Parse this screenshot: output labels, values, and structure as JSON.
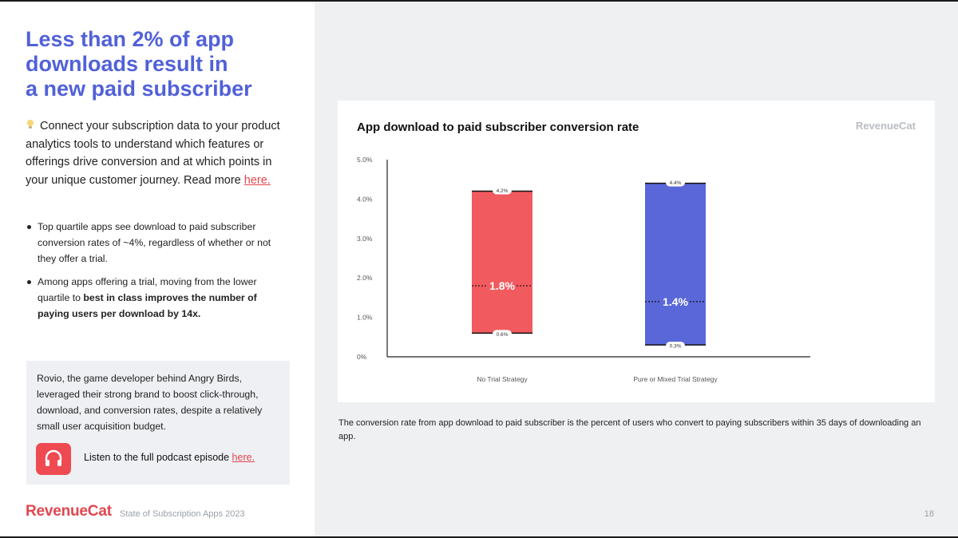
{
  "left": {
    "headline": [
      "Less than 2% of app",
      "downloads result in",
      "a new paid subscriber"
    ],
    "intro_text": "Connect your subscription data to your product analytics tools to understand which features or offerings drive conversion and at which points in your unique customer journey. Read more ",
    "intro_link": "here.",
    "bullet1": "Top quartile apps see download to paid subscriber conversion rates of ~4%, regardless of whether or not they offer a trial.",
    "bullet2_pre": "Among apps offering a trial, moving from the lower quartile to ",
    "bullet2_bold": "best in class improves the number of paying users per download by 14x.",
    "callout_text": "Rovio, the game developer behind Angry Birds, leveraged their strong brand to boost click-through, download, and conversion rates, despite a relatively small user acquisition budget.",
    "podcast_text": "Listen to the full podcast episode ",
    "podcast_link": "here."
  },
  "footer": {
    "logo": "RevenueCat",
    "subtitle": "State of Subscription Apps 2023",
    "page": "18"
  },
  "chart_card": {
    "brand": "RevenueCat"
  },
  "caption": "The conversion rate from app download to paid subscriber is the percent of users who convert to paying subscribers within 35 days of downloading an app.",
  "colors": {
    "accent": "#5161d8",
    "brand_red": "#e2464f",
    "bar_red": "#f15a5e",
    "bar_blue": "#5a67d8"
  },
  "chart_data": {
    "type": "bar",
    "title": "App download to paid subscriber conversion rate",
    "xlabel": "",
    "ylabel": "",
    "ylim": [
      0,
      5
    ],
    "yticks": [
      0,
      1,
      2,
      3,
      4,
      5
    ],
    "ytick_labels": [
      "0%",
      "1.0%",
      "2.0%",
      "3.0%",
      "4.0%",
      "5.0%"
    ],
    "categories": [
      "No Trial Strategy",
      "Pure or Mixed Trial Strategy"
    ],
    "bars": [
      {
        "category": "No Trial Strategy",
        "low": 0.6,
        "high": 4.2,
        "median": 1.8,
        "low_label": "0.6%",
        "high_label": "4.2%",
        "median_label": "1.8%",
        "color": "#f15a5e"
      },
      {
        "category": "Pure or Mixed Trial Strategy",
        "low": 0.3,
        "high": 4.4,
        "median": 1.4,
        "low_label": "0.3%",
        "high_label": "4.4%",
        "median_label": "1.4%",
        "color": "#5a67d8"
      }
    ]
  }
}
